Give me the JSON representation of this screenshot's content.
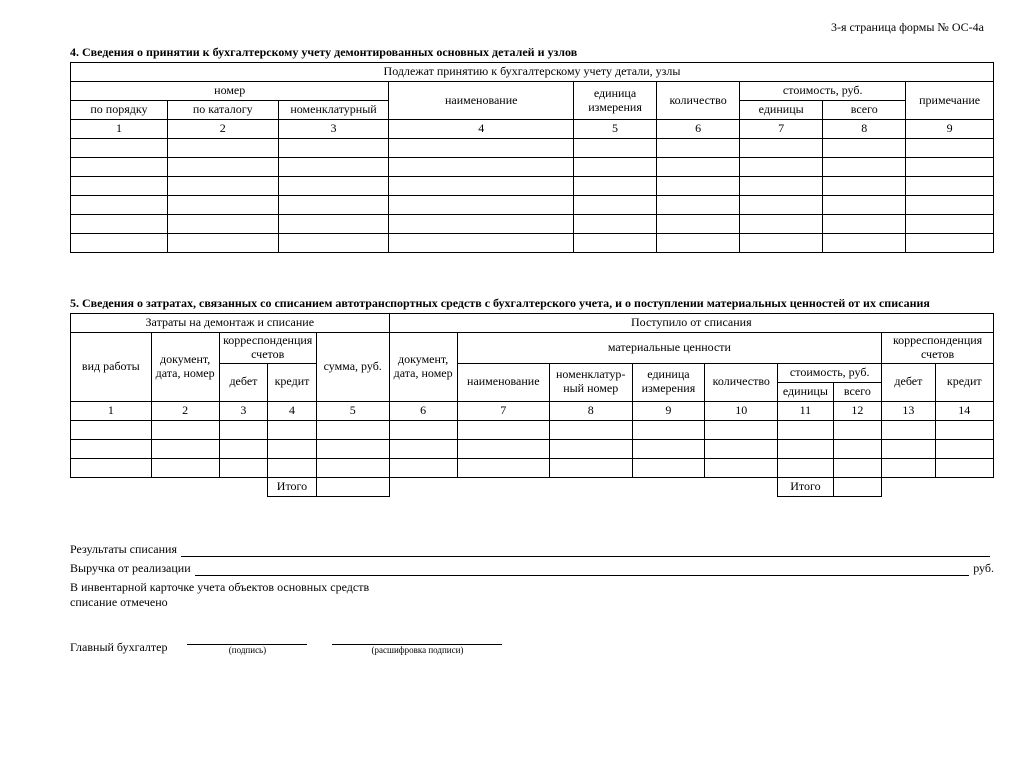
{
  "page_label": "3-я страница формы № ОС-4а",
  "section4": {
    "title": "4. Сведения о принятии к бухгалтерскому учету демонтированных основных деталей и узлов",
    "header_top": "Подлежат принятию к бухгалтерскому учету детали, узлы",
    "h_nomer": "номер",
    "h_naimen": "наименование",
    "h_edizm": "единица измерения",
    "h_kol": "количество",
    "h_stoim": "стоимость, руб.",
    "h_prim": "примечание",
    "h_nomer_poryadku": "по порядку",
    "h_nomer_katalogu": "по каталогу",
    "h_nomer_nomencl": "номенклатурный",
    "h_stoim_ed": "единицы",
    "h_stoim_vsego": "всего",
    "cols": [
      "1",
      "2",
      "3",
      "4",
      "5",
      "6",
      "7",
      "8",
      "9"
    ],
    "empty_rows": 6
  },
  "section5": {
    "title": "5. Сведения о затратах, связанных со списанием автотранспортных средств с бухгалтерского учета, и о поступлении материальных ценностей от их списания",
    "h_zatraty": "Затраты на демонтаж и списание",
    "h_postup": "Поступило от списания",
    "h_vidraboty": "вид работы",
    "h_docdate": "документ, дата, номер",
    "h_korresp": "корреспонденция счетов",
    "h_summa": "сумма, руб.",
    "h_matcen": "материальные ценности",
    "h_debet": "дебет",
    "h_kredit": "кредит",
    "h_naimen": "наименование",
    "h_nomencl": "номенклатур­ный номер",
    "h_edizm": "единица измерения",
    "h_kol": "количество",
    "h_stoim": "стоимость, руб.",
    "h_stoim_ed": "единицы",
    "h_stoim_vsego": "всего",
    "itogo": "Итого",
    "cols": [
      "1",
      "2",
      "3",
      "4",
      "5",
      "6",
      "7",
      "8",
      "9",
      "10",
      "11",
      "12",
      "13",
      "14"
    ],
    "empty_rows": 3
  },
  "footer": {
    "rez": "Результаты списания",
    "vyr": "Выручка от реализации",
    "rub": "руб.",
    "inv_line1": "В инвентарной карточке учета объектов основных средств",
    "inv_line2": "списание отмечено",
    "glavbuh": "Главный бухгалтер",
    "podpis": "(подпись)",
    "rasshifr": "(расшифровка подписи)"
  }
}
